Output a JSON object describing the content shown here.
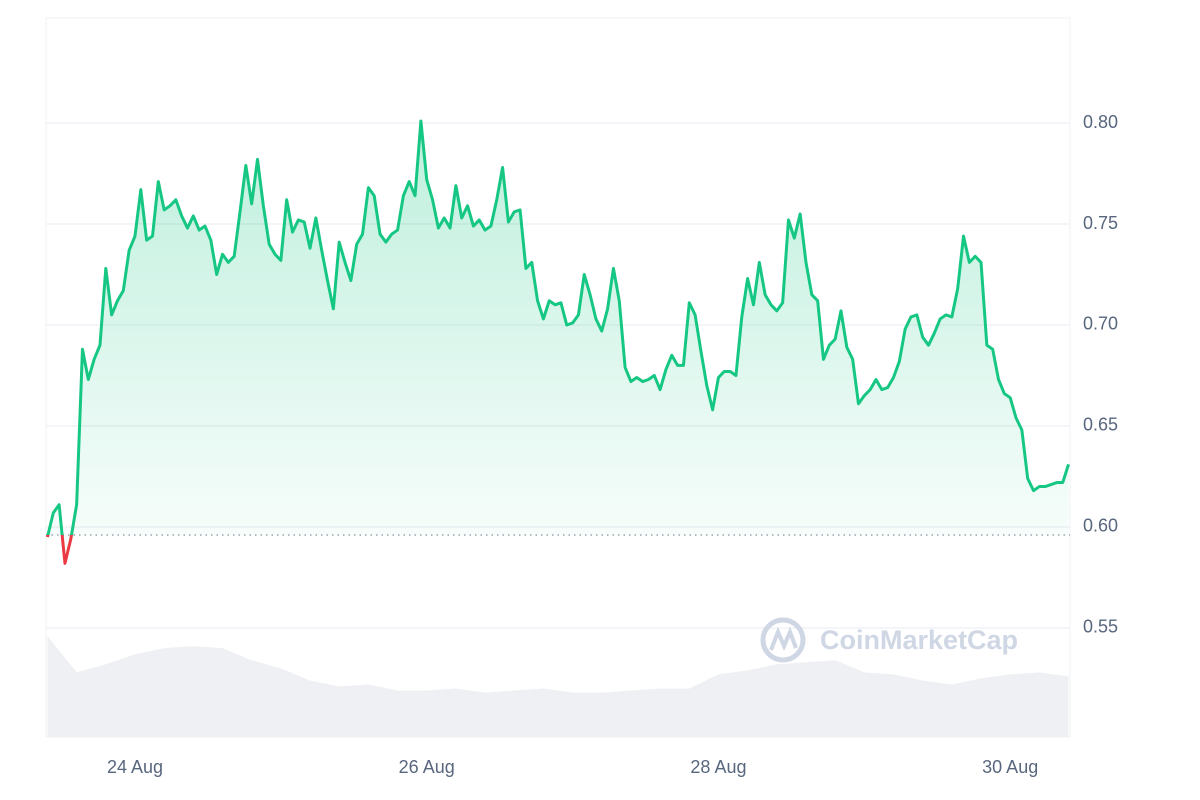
{
  "chart_data": {
    "type": "line",
    "x": [
      23.4,
      23.44,
      23.48,
      23.52,
      23.56,
      23.6,
      23.64,
      23.68,
      23.72,
      23.76,
      23.8,
      23.84,
      23.88,
      23.92,
      23.96,
      24,
      24.04,
      24.08,
      24.12,
      24.16,
      24.2,
      24.24,
      24.28,
      24.32,
      24.36,
      24.4,
      24.44,
      24.48,
      24.52,
      24.56,
      24.6,
      24.64,
      24.68,
      24.72,
      24.76,
      24.8,
      24.84,
      24.88,
      24.92,
      24.96,
      25,
      25.04,
      25.08,
      25.12,
      25.16,
      25.2,
      25.24,
      25.28,
      25.32,
      25.36,
      25.4,
      25.44,
      25.48,
      25.52,
      25.56,
      25.6,
      25.64,
      25.68,
      25.72,
      25.76,
      25.8,
      25.84,
      25.88,
      25.92,
      25.96,
      26,
      26.04,
      26.08,
      26.12,
      26.16,
      26.2,
      26.24,
      26.28,
      26.32,
      26.36,
      26.4,
      26.44,
      26.48,
      26.52,
      26.56,
      26.6,
      26.64,
      26.68,
      26.72,
      26.76,
      26.8,
      26.84,
      26.88,
      26.92,
      26.96,
      27,
      27.04,
      27.08,
      27.12,
      27.16,
      27.2,
      27.24,
      27.28,
      27.32,
      27.36,
      27.4,
      27.44,
      27.48,
      27.52,
      27.56,
      27.6,
      27.64,
      27.68,
      27.72,
      27.76,
      27.8,
      27.84,
      27.88,
      27.92,
      27.96,
      28,
      28.04,
      28.08,
      28.12,
      28.16,
      28.2,
      28.24,
      28.28,
      28.32,
      28.36,
      28.4,
      28.44,
      28.48,
      28.52,
      28.56,
      28.6,
      28.64,
      28.68,
      28.72,
      28.76,
      28.8,
      28.84,
      28.88,
      28.92,
      28.96,
      29,
      29.04,
      29.08,
      29.12,
      29.16,
      29.2,
      29.24,
      29.28,
      29.32,
      29.36,
      29.4,
      29.44,
      29.48,
      29.52,
      29.56,
      29.6,
      29.64,
      29.68,
      29.72,
      29.76,
      29.8,
      29.84,
      29.88,
      29.92,
      29.96,
      30,
      30.04,
      30.08,
      30.12,
      30.16,
      30.2,
      30.24,
      30.28,
      30.32,
      30.36,
      30.4
    ],
    "values": [
      0.595,
      0.607,
      0.611,
      0.582,
      0.594,
      0.611,
      0.688,
      0.673,
      0.683,
      0.69,
      0.728,
      0.705,
      0.712,
      0.717,
      0.737,
      0.744,
      0.767,
      0.742,
      0.744,
      0.771,
      0.757,
      0.759,
      0.762,
      0.754,
      0.748,
      0.754,
      0.747,
      0.749,
      0.742,
      0.725,
      0.735,
      0.731,
      0.734,
      0.756,
      0.779,
      0.76,
      0.782,
      0.759,
      0.74,
      0.735,
      0.732,
      0.762,
      0.746,
      0.752,
      0.751,
      0.738,
      0.753,
      0.737,
      0.722,
      0.708,
      0.741,
      0.731,
      0.722,
      0.74,
      0.745,
      0.768,
      0.764,
      0.745,
      0.741,
      0.745,
      0.747,
      0.764,
      0.771,
      0.764,
      0.801,
      0.772,
      0.762,
      0.748,
      0.753,
      0.748,
      0.769,
      0.753,
      0.759,
      0.749,
      0.752,
      0.747,
      0.749,
      0.762,
      0.778,
      0.751,
      0.756,
      0.757,
      0.728,
      0.731,
      0.712,
      0.703,
      0.712,
      0.71,
      0.711,
      0.7,
      0.701,
      0.705,
      0.725,
      0.715,
      0.703,
      0.697,
      0.708,
      0.728,
      0.712,
      0.679,
      0.672,
      0.674,
      0.672,
      0.673,
      0.675,
      0.668,
      0.678,
      0.685,
      0.68,
      0.68,
      0.711,
      0.705,
      0.687,
      0.67,
      0.658,
      0.674,
      0.677,
      0.677,
      0.675,
      0.704,
      0.723,
      0.71,
      0.731,
      0.715,
      0.71,
      0.707,
      0.711,
      0.752,
      0.743,
      0.755,
      0.731,
      0.715,
      0.712,
      0.683,
      0.69,
      0.693,
      0.707,
      0.689,
      0.683,
      0.661,
      0.665,
      0.668,
      0.673,
      0.668,
      0.669,
      0.674,
      0.682,
      0.698,
      0.704,
      0.705,
      0.694,
      0.69,
      0.696,
      0.703,
      0.705,
      0.704,
      0.718,
      0.744,
      0.731,
      0.734,
      0.731,
      0.69,
      0.688,
      0.673,
      0.666,
      0.664,
      0.654,
      0.648,
      0.624,
      0.618,
      0.62,
      0.62,
      0.621,
      0.622,
      0.622,
      0.631
    ],
    "color": "#16c784",
    "down_color": "#ea3943",
    "baseline": 0.596,
    "volume": {
      "x": [
        23.4,
        23.6,
        23.8,
        24,
        24.2,
        24.4,
        24.6,
        24.8,
        25,
        25.2,
        25.4,
        25.6,
        25.8,
        26,
        26.2,
        26.4,
        26.6,
        26.8,
        27,
        27.2,
        27.4,
        27.6,
        27.8,
        28,
        28.2,
        28.4,
        28.6,
        28.8,
        29,
        29.2,
        29.4,
        29.6,
        29.8,
        30,
        30.2,
        30.4
      ],
      "values": [
        0.546,
        0.528,
        0.532,
        0.537,
        0.54,
        0.541,
        0.54,
        0.534,
        0.53,
        0.524,
        0.521,
        0.522,
        0.519,
        0.519,
        0.52,
        0.518,
        0.519,
        0.52,
        0.518,
        0.518,
        0.519,
        0.52,
        0.52,
        0.527,
        0.529,
        0.532,
        0.533,
        0.534,
        0.528,
        0.527,
        0.524,
        0.522,
        0.525,
        0.527,
        0.528,
        0.526
      ],
      "color": "#eef0f3"
    },
    "xlim": [
      23.39,
      30.41
    ],
    "xticks": [
      {
        "value": 24,
        "label": "24 Aug"
      },
      {
        "value": 26,
        "label": "26 Aug"
      },
      {
        "value": 28,
        "label": "28 Aug"
      },
      {
        "value": 30,
        "label": "30 Aug"
      }
    ],
    "ylim": [
      0.496,
      0.852
    ],
    "yticks": [
      0.55,
      {
        "value": 0.6,
        "label": "0.60"
      },
      0.65,
      {
        "value": 0.7,
        "label": "0.70"
      },
      0.75,
      {
        "value": 0.8,
        "label": "0.80"
      }
    ],
    "grid": true,
    "watermark": "CoinMarketCap"
  }
}
